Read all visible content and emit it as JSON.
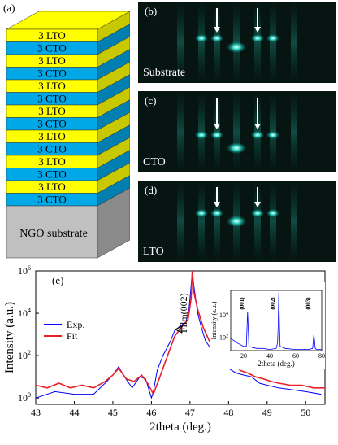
{
  "panel_a": {
    "label": "(a)",
    "layers": [
      "3 LTO",
      "3 CTO",
      "3 LTO",
      "3 CTO",
      "3 LTO",
      "3 CTO",
      "3 LTO",
      "3 CTO",
      "3 LTO",
      "3 CTO",
      "3 LTO",
      "3 CTO",
      "3 LTO",
      "3 CTO"
    ],
    "substrate_label": "NGO substrate",
    "colors": {
      "lto": "#ffff00",
      "cto": "#00a8e8",
      "side_lto": "#c8c800",
      "side_cto": "#007fb0",
      "substrate": "#c0c0c0",
      "substrate_side": "#8a8a8a"
    }
  },
  "rheed": [
    {
      "tag": "(b)",
      "caption": "Substrate"
    },
    {
      "tag": "(c)",
      "caption": "CTO"
    },
    {
      "tag": "(d)",
      "caption": "LTO"
    }
  ],
  "chart_data": {
    "type": "line",
    "panel_label": "(e)",
    "xlabel": "2theta (deg.)",
    "ylabel": "Intensity (a.u.)",
    "xlim": [
      43,
      50.5
    ],
    "ylim_log10": [
      -0.3,
      6
    ],
    "x_ticks": [
      "43",
      "44",
      "45",
      "46",
      "47",
      "48",
      "49",
      "50"
    ],
    "y_ticks": [
      "10^0",
      "10^2",
      "10^4",
      "10^6"
    ],
    "annotation": "Film(002)",
    "legend": {
      "position": "middle-left",
      "entries": [
        "Exp.",
        "Fit"
      ]
    },
    "series": [
      {
        "name": "Exp.",
        "color": "#0000ff",
        "x": [
          43.0,
          43.5,
          44.0,
          44.5,
          44.8,
          45.0,
          45.15,
          45.3,
          45.5,
          45.7,
          45.85,
          46.0,
          46.05,
          46.15,
          46.3,
          46.5,
          46.6,
          46.75,
          46.9,
          46.98,
          47.03,
          47.06,
          47.1,
          47.2,
          47.3,
          47.4,
          47.55,
          47.7,
          47.85,
          48.0,
          48.2,
          48.4,
          48.6,
          48.8,
          49.0,
          49.3,
          49.6,
          50.0,
          50.4
        ],
        "y": [
          1.0,
          2.0,
          1.5,
          1.5,
          5.0,
          12.0,
          30.0,
          10.0,
          3.0,
          10.0,
          8.0,
          1.0,
          2.0,
          20.0,
          100.0,
          500.0,
          1500.0,
          2500.0,
          4000.0,
          20000.0,
          200000.0,
          1000000.0,
          200000.0,
          10000.0,
          2000.0,
          500.0,
          200.0,
          80.0,
          30.0,
          25.0,
          15.0,
          12.0,
          10.0,
          5.0,
          4.0,
          3.0,
          2.5,
          2.0,
          1.5
        ]
      },
      {
        "name": "Fit",
        "color": "#e8202a",
        "x": [
          43.0,
          43.3,
          43.6,
          43.9,
          44.2,
          44.5,
          44.8,
          45.0,
          45.15,
          45.35,
          45.55,
          45.75,
          45.9,
          46.05,
          46.2,
          46.4,
          46.6,
          46.8,
          46.95,
          47.03,
          47.06,
          47.1,
          47.2,
          47.35,
          47.5,
          47.7,
          47.85,
          48.0,
          48.15,
          48.3,
          48.5,
          48.7,
          48.9,
          49.1,
          49.3,
          49.6,
          49.9,
          50.2,
          50.5
        ],
        "y": [
          4.0,
          3.0,
          5.0,
          3.0,
          4.0,
          3.0,
          6.0,
          12.0,
          25.0,
          8.0,
          6.0,
          12.0,
          5.0,
          1.5,
          8.0,
          80.0,
          800.0,
          2500.0,
          5000.0,
          50000.0,
          1000000.0,
          100000.0,
          15000.0,
          2000.0,
          500.0,
          100.0,
          40.0,
          30.0,
          50.0,
          20.0,
          15.0,
          10.0,
          8.0,
          6.0,
          5.0,
          4.0,
          4.0,
          3.0,
          3.0
        ]
      }
    ]
  },
  "inset_chart_data": {
    "type": "line",
    "xlabel": "2theta (deg.)",
    "ylabel": "Intensity (a.u.)",
    "xlim": [
      0,
      80
    ],
    "x_ticks": [
      "20",
      "40",
      "60",
      "80"
    ],
    "y_ticks": [
      "10^2",
      "10^4"
    ],
    "peak_labels": [
      "(001)",
      "(002)",
      "(003)"
    ],
    "series": [
      {
        "name": "",
        "color": "#0000ff",
        "x": [
          10,
          15,
          18,
          20,
          22,
          23,
          24,
          27,
          30,
          35,
          40,
          45,
          46,
          46.5,
          47,
          47.5,
          48,
          52,
          60,
          65,
          70,
          73,
          74,
          75,
          76,
          78,
          80
        ],
        "y": [
          80,
          30,
          20,
          15,
          15,
          20000,
          15,
          12,
          10,
          10,
          8,
          10,
          30,
          1000,
          1000000,
          1000,
          15,
          10,
          8,
          8,
          8,
          10,
          200,
          10,
          8,
          8,
          8
        ]
      }
    ]
  }
}
